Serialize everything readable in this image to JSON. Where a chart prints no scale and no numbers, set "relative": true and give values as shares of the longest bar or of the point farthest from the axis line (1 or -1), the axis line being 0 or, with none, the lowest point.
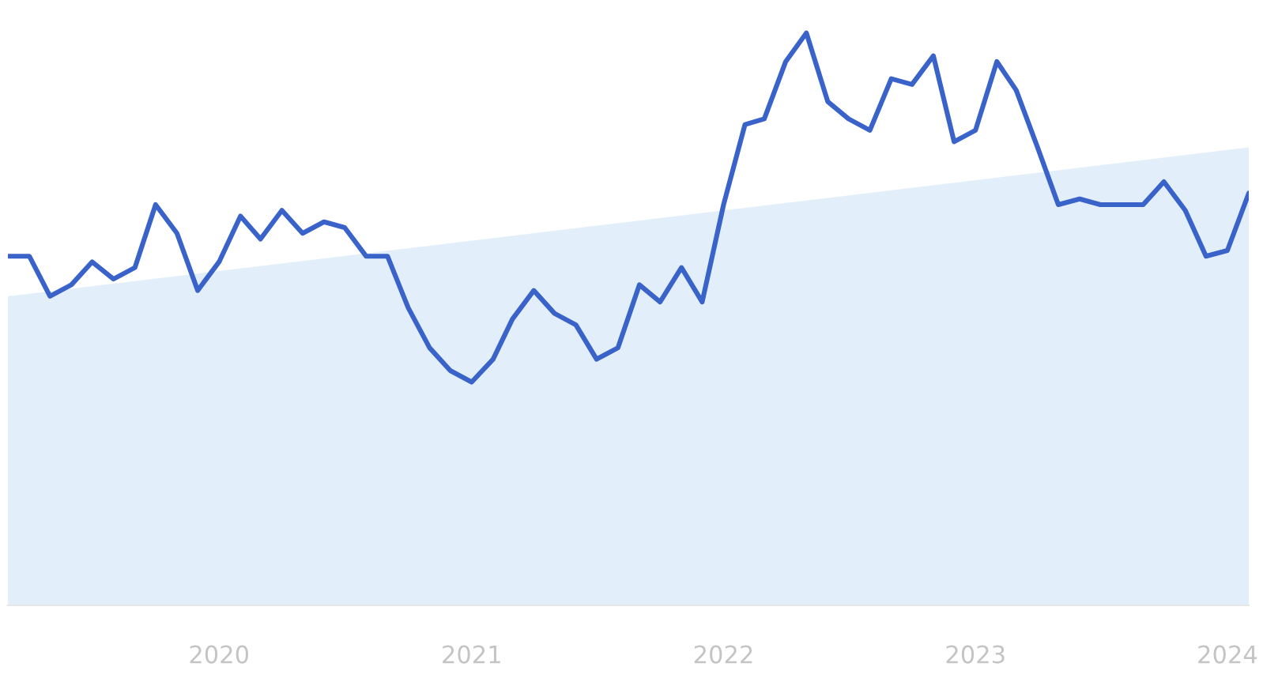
{
  "chart_data": {
    "type": "line",
    "relative": true,
    "xlim": [
      "2019-03",
      "2024-02"
    ],
    "xticks": [
      "2020",
      "2021",
      "2022",
      "2023",
      "2024"
    ],
    "series": [
      {
        "type": "area",
        "color": "#dceafa",
        "x": [
          "2019-03",
          "2024-02"
        ],
        "values": [
          0.54,
          0.8
        ]
      },
      {
        "color": "#3a63c9",
        "x": [
          "2019-03",
          "2019-04",
          "2019-05",
          "2019-06",
          "2019-07",
          "2019-08",
          "2019-09",
          "2019-10",
          "2019-11",
          "2019-12",
          "2020-01",
          "2020-02",
          "2020-03",
          "2020-04",
          "2020-05",
          "2020-06",
          "2020-07",
          "2020-08",
          "2020-09",
          "2020-10",
          "2020-11",
          "2020-12",
          "2021-01",
          "2021-02",
          "2021-03",
          "2021-04",
          "2021-05",
          "2021-06",
          "2021-07",
          "2021-08",
          "2021-09",
          "2021-10",
          "2021-11",
          "2021-12",
          "2022-01",
          "2022-02",
          "2022-03",
          "2022-04",
          "2022-05",
          "2022-06",
          "2022-07",
          "2022-08",
          "2022-09",
          "2022-10",
          "2022-11",
          "2022-12",
          "2023-01",
          "2023-02",
          "2023-03",
          "2023-04",
          "2023-05",
          "2023-06",
          "2023-07",
          "2023-08",
          "2023-09",
          "2023-10",
          "2023-11",
          "2023-12",
          "2024-01",
          "2024-02"
        ],
        "values": [
          0.61,
          0.61,
          0.54,
          0.56,
          0.6,
          0.57,
          0.59,
          0.7,
          0.65,
          0.55,
          0.6,
          0.68,
          0.64,
          0.69,
          0.65,
          0.67,
          0.66,
          0.61,
          0.61,
          0.52,
          0.45,
          0.41,
          0.39,
          0.43,
          0.5,
          0.55,
          0.51,
          0.49,
          0.43,
          0.45,
          0.56,
          0.53,
          0.59,
          0.53,
          0.7,
          0.84,
          0.85,
          0.95,
          1,
          0.88,
          0.85,
          0.83,
          0.92,
          0.91,
          0.96,
          0.81,
          0.83,
          0.95,
          0.9,
          0.8,
          0.7,
          0.71,
          0.7,
          0.7,
          0.7,
          0.74,
          0.69,
          0.61,
          0.62,
          0.72
        ]
      }
    ],
    "grid": false,
    "legend": false,
    "marker": "none",
    "line_style": "solid"
  }
}
